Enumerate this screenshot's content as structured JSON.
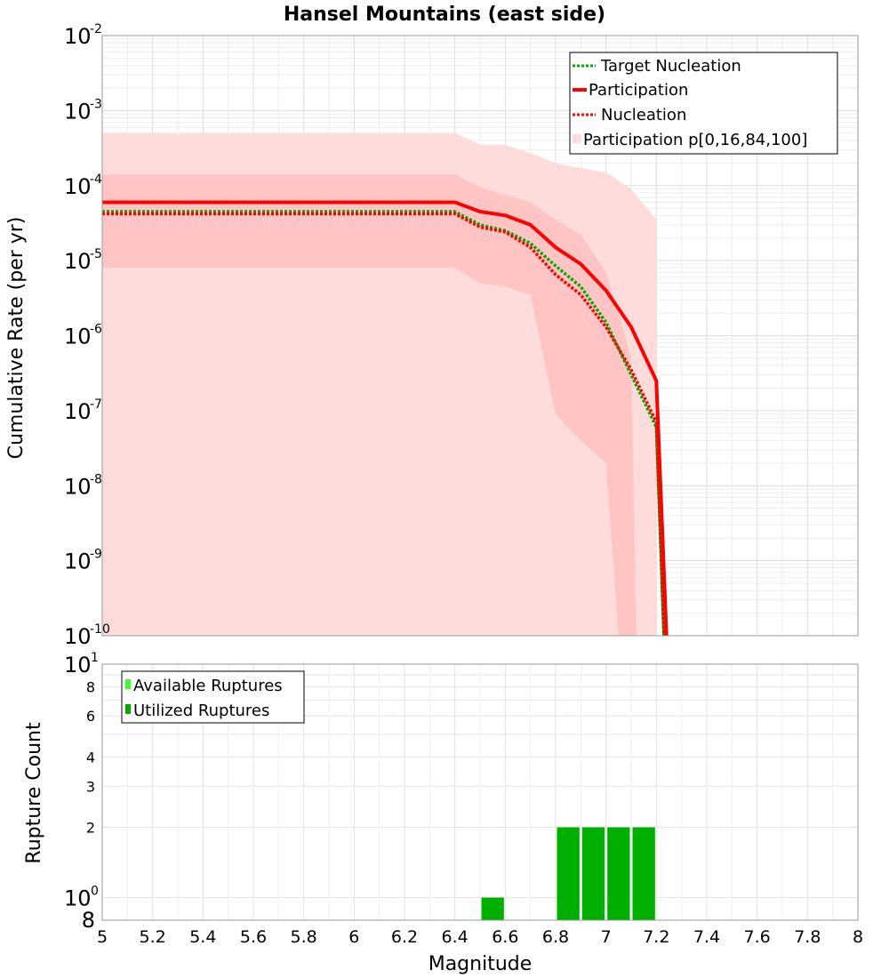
{
  "chart_data": [
    {
      "type": "line",
      "title": "Hansel Mountains (east side)",
      "xlabel": "",
      "ylabel": "Cumulative Rate (per yr)",
      "xlim": [
        5,
        8
      ],
      "ylim": [
        1e-10,
        0.01
      ],
      "yscale": "log",
      "grid": true,
      "legend_position": "top-right",
      "y_tick_exponents": [
        "-2",
        "-3",
        "-4",
        "-5",
        "-6",
        "-7",
        "-8",
        "-9",
        "-10"
      ],
      "y_tick_base": "10",
      "legend": [
        {
          "label": "Target Nucleation",
          "color": "#00aa00",
          "style": "dotted"
        },
        {
          "label": "Participation",
          "color": "#ff0000",
          "style": "solid"
        },
        {
          "label": "Nucleation",
          "color": "#ff0000",
          "style": "dotted"
        },
        {
          "label": "Participation p[0,16,84,100]",
          "color": "#ffdcdc",
          "style": "band"
        }
      ],
      "series": [
        {
          "name": "Target Nucleation",
          "color": "#00aa00",
          "style": "dotted",
          "x": [
            5.0,
            6.4,
            6.5,
            6.6,
            6.7,
            6.8,
            6.9,
            7.0,
            7.1,
            7.2,
            7.23
          ],
          "y": [
            4.5e-05,
            4.5e-05,
            3e-05,
            2.5e-05,
            1.7e-05,
            8.5e-06,
            4.5e-06,
            1.5e-06,
            3e-07,
            6e-08,
            1e-10
          ]
        },
        {
          "name": "Participation",
          "color": "#ff0000",
          "style": "solid",
          "x": [
            5.0,
            6.4,
            6.5,
            6.6,
            6.7,
            6.8,
            6.9,
            7.0,
            7.1,
            7.2,
            7.24
          ],
          "y": [
            6e-05,
            6e-05,
            4.5e-05,
            4e-05,
            3e-05,
            1.5e-05,
            9e-06,
            4e-06,
            1.3e-06,
            2.5e-07,
            1e-10
          ]
        },
        {
          "name": "Nucleation",
          "color": "#ff0000",
          "style": "dotted",
          "x": [
            5.0,
            6.4,
            6.5,
            6.6,
            6.7,
            6.8,
            6.9,
            7.0,
            7.1,
            7.2,
            7.23
          ],
          "y": [
            4.2e-05,
            4.2e-05,
            2.8e-05,
            2.4e-05,
            1.5e-05,
            6.5e-06,
            3.5e-06,
            1.3e-06,
            3.5e-07,
            7e-08,
            1e-10
          ]
        }
      ],
      "bands": [
        {
          "name": "Participation p[0,16,84,100]",
          "color": "#ffdcdc",
          "x": [
            5.0,
            6.4,
            6.5,
            6.6,
            6.7,
            6.8,
            6.9,
            7.0,
            7.1,
            7.2
          ],
          "upper": [
            0.0005,
            0.0005,
            0.00035,
            0.00035,
            0.00027,
            0.0002,
            0.00017,
            0.00015,
            9e-05,
            3.5e-05
          ],
          "lower": [
            1e-10,
            1e-10,
            1e-10,
            1e-10,
            1e-10,
            1e-10,
            1e-10,
            1e-10,
            1e-10,
            1e-10
          ]
        },
        {
          "name": "Participation 16-84",
          "color": "#ffc4c4",
          "x": [
            5.0,
            6.4,
            6.5,
            6.6,
            6.7,
            6.8,
            6.9,
            7.0,
            7.05,
            7.1,
            7.12
          ],
          "upper": [
            0.00014,
            0.00014,
            9.5e-05,
            7.5e-05,
            6e-05,
            3.5e-05,
            2.2e-05,
            7e-06,
            2e-06,
            5e-07,
            1e-10
          ],
          "lower": [
            8e-06,
            8e-06,
            5e-06,
            4.5e-06,
            3.5e-06,
            9e-08,
            4e-08,
            2e-08,
            1e-10,
            1e-10,
            1e-10
          ]
        }
      ]
    },
    {
      "type": "bar",
      "xlabel": "Magnitude",
      "ylabel": "Rupture Count",
      "xlim": [
        5,
        8
      ],
      "ylim": [
        0.8,
        10
      ],
      "yscale": "log",
      "grid": true,
      "legend_position": "top-left",
      "x_ticks": [
        "5",
        "5.2",
        "5.4",
        "5.6",
        "5.8",
        "6",
        "6.2",
        "6.4",
        "6.6",
        "6.8",
        "7",
        "7.2",
        "7.4",
        "7.6",
        "7.8",
        "8"
      ],
      "y_ticks_minor": [
        "8",
        "6",
        "4",
        "3",
        "2"
      ],
      "y_tick_bottom": "8",
      "y_tick_base": "10",
      "y_tick_exponents": [
        "1",
        "0"
      ],
      "legend": [
        {
          "label": "Available Ruptures",
          "color": "#33ff33"
        },
        {
          "label": "Utilized Ruptures",
          "color": "#00aa00"
        }
      ],
      "series": [
        {
          "name": "Utilized Ruptures",
          "color": "#00b000",
          "x": [
            6.55,
            6.85,
            6.95,
            7.05,
            7.15
          ],
          "values": [
            1,
            2,
            2,
            2,
            2
          ]
        }
      ]
    }
  ]
}
